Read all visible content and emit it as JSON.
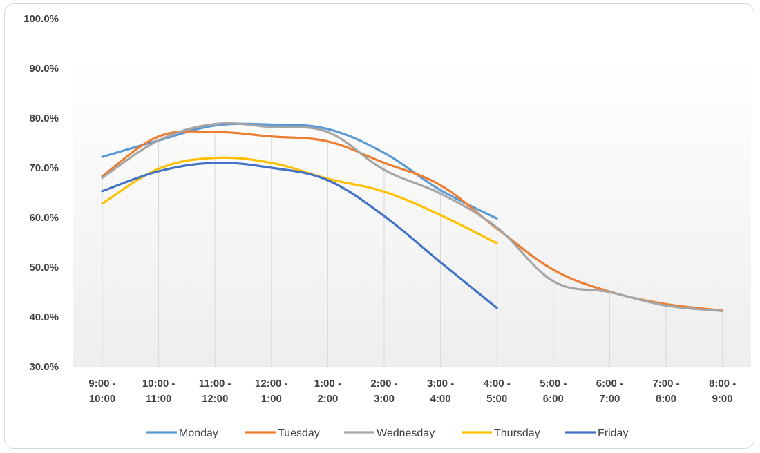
{
  "chart_data": {
    "type": "line",
    "smooth": true,
    "categories": [
      [
        "9:00 -",
        "10:00"
      ],
      [
        "10:00 -",
        "11:00"
      ],
      [
        "11:00 -",
        "12:00"
      ],
      [
        "12:00 -",
        "1:00"
      ],
      [
        "1:00 -",
        "2:00"
      ],
      [
        "2:00 -",
        "3:00"
      ],
      [
        "3:00 -",
        "4:00"
      ],
      [
        "4:00 -",
        "5:00"
      ],
      [
        "5:00 -",
        "6:00"
      ],
      [
        "6:00 -",
        "7:00"
      ],
      [
        "7:00 -",
        "8:00"
      ],
      [
        "8:00 -",
        "9:00"
      ]
    ],
    "ylim": [
      0.3,
      1.0
    ],
    "y_ticks": [
      0.3,
      0.4,
      0.5,
      0.6,
      0.7,
      0.8,
      0.9,
      1.0
    ],
    "y_tick_labels": [
      "30.0%",
      "40.0%",
      "50.0%",
      "60.0%",
      "70.0%",
      "80.0%",
      "90.0%",
      "100.0%"
    ],
    "vertical_gridlines": true,
    "legend_position": "bottom",
    "series": [
      {
        "name": "Monday",
        "color": "#5b9bd5",
        "values": [
          0.722,
          0.755,
          0.785,
          0.787,
          0.778,
          0.73,
          0.655,
          0.598,
          null,
          null,
          null,
          null
        ]
      },
      {
        "name": "Tuesday",
        "color": "#ed7d31",
        "values": [
          0.683,
          0.763,
          0.772,
          0.763,
          0.753,
          0.71,
          0.665,
          0.578,
          0.495,
          0.451,
          0.426,
          0.413
        ]
      },
      {
        "name": "Wednesday",
        "color": "#a5a5a5",
        "values": [
          0.68,
          0.755,
          0.788,
          0.782,
          0.772,
          0.696,
          0.648,
          0.58,
          0.472,
          0.45,
          0.423,
          0.412
        ]
      },
      {
        "name": "Thursday",
        "color": "#ffc000",
        "values": [
          0.628,
          0.698,
          0.72,
          0.71,
          0.678,
          0.652,
          0.605,
          0.548,
          null,
          null,
          null,
          null
        ]
      },
      {
        "name": "Friday",
        "color": "#4472c4",
        "values": [
          0.653,
          0.693,
          0.71,
          0.7,
          0.675,
          0.603,
          0.51,
          0.418,
          null,
          null,
          null,
          null
        ]
      }
    ]
  }
}
